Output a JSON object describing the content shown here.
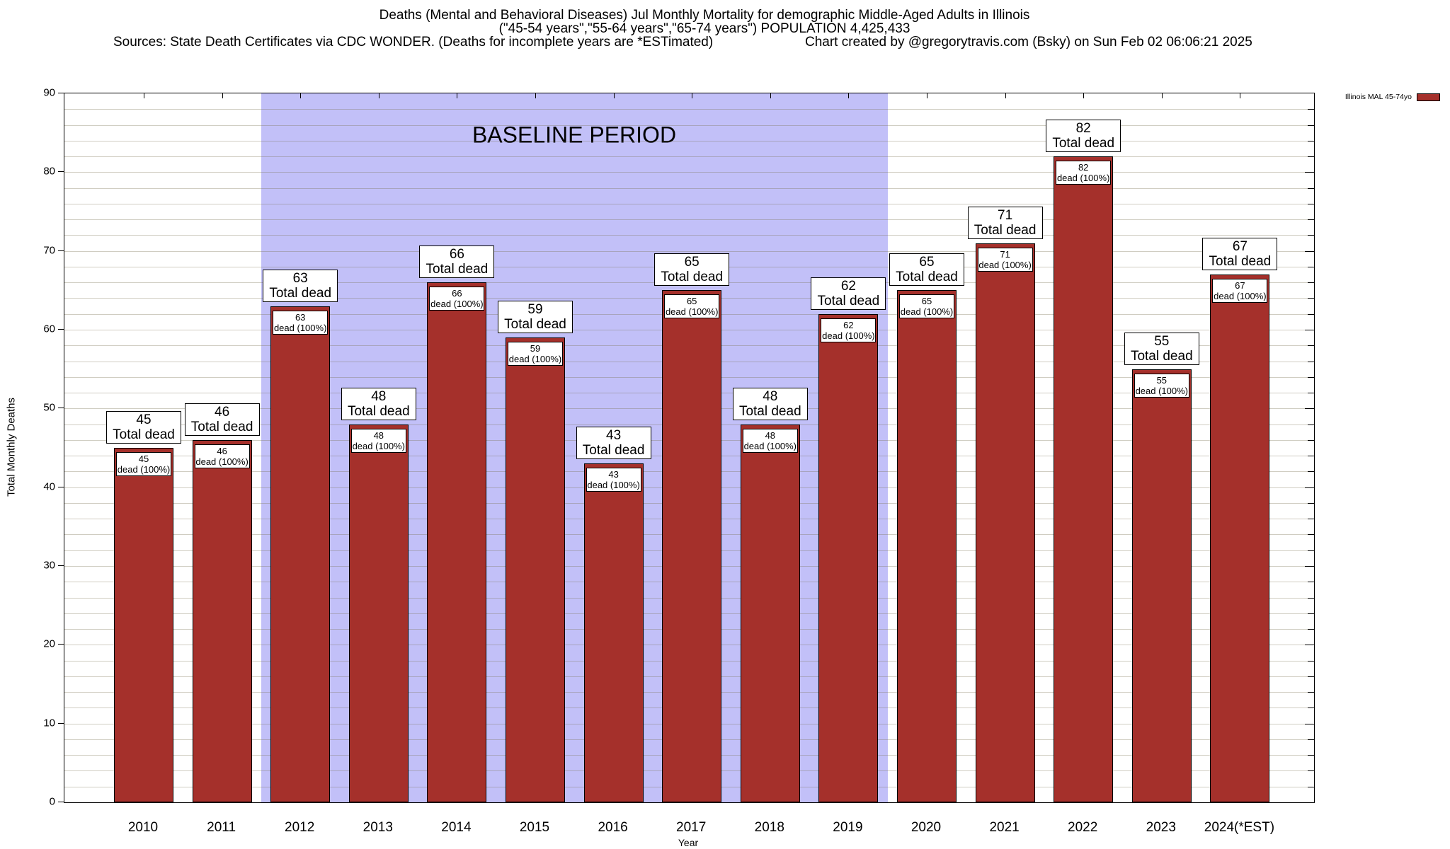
{
  "header": {
    "line1": "Deaths (Mental and Behavioral Diseases) Jul Monthly Mortality for demographic Middle-Aged Adults in Illinois",
    "line2": "(\"45-54 years\",\"55-64 years\",\"65-74 years\") POPULATION 4,425,433",
    "sources": "Sources: State Death Certificates via CDC WONDER. (Deaths for incomplete years are *ESTimated)",
    "credit": "Chart created by @gregorytravis.com (Bsky) on Sun Feb 02 06:06:21 2025"
  },
  "legend": {
    "label": "Illinois MAL 45-74yo",
    "swatch_color": "#a5302b"
  },
  "plot": {
    "baseline_label": "BASELINE PERIOD",
    "baseline_color": "#c2c0f8",
    "bar_color": "#a5302b",
    "bar_top_label_suffix": "Total dead",
    "bar_inner_label_suffix": "dead (100%)"
  },
  "axes": {
    "ylabel": "Total Monthly Deaths",
    "xlabel": "Year",
    "ymin": 0,
    "ymax": 90,
    "ytick_step": 10,
    "minor_grid_step": 2,
    "yticks": [
      0,
      10,
      20,
      30,
      40,
      50,
      60,
      70,
      80,
      90
    ]
  },
  "chart_data": {
    "type": "bar",
    "title": "Deaths (Mental and Behavioral Diseases) Jul Monthly Mortality for demographic Middle-Aged Adults in Illinois",
    "subtitle": "(\"45-54 years\",\"55-64 years\",\"65-74 years\") POPULATION 4,425,433",
    "series_name": "Illinois MAL 45-74yo",
    "categories": [
      "2010",
      "2011",
      "2012",
      "2013",
      "2014",
      "2015",
      "2016",
      "2017",
      "2018",
      "2019",
      "2020",
      "2021",
      "2022",
      "2023",
      "2024(*EST)"
    ],
    "values": [
      45,
      46,
      63,
      48,
      66,
      59,
      43,
      65,
      48,
      62,
      65,
      71,
      82,
      55,
      67
    ],
    "xlabel": "Year",
    "ylabel": "Total Monthly Deaths",
    "ylim": [
      0,
      90
    ],
    "grid": true,
    "legend_position": "top-right",
    "bar_color": "#a5302b",
    "annotations": {
      "baseline_period": {
        "text": "BASELINE PERIOD",
        "from_category": "2012",
        "to_category": "2019",
        "fill_color": "#c2c0f8"
      },
      "per_bar_top_label": "{value} Total dead",
      "per_bar_inner_label": "{value} dead (100%)"
    }
  }
}
